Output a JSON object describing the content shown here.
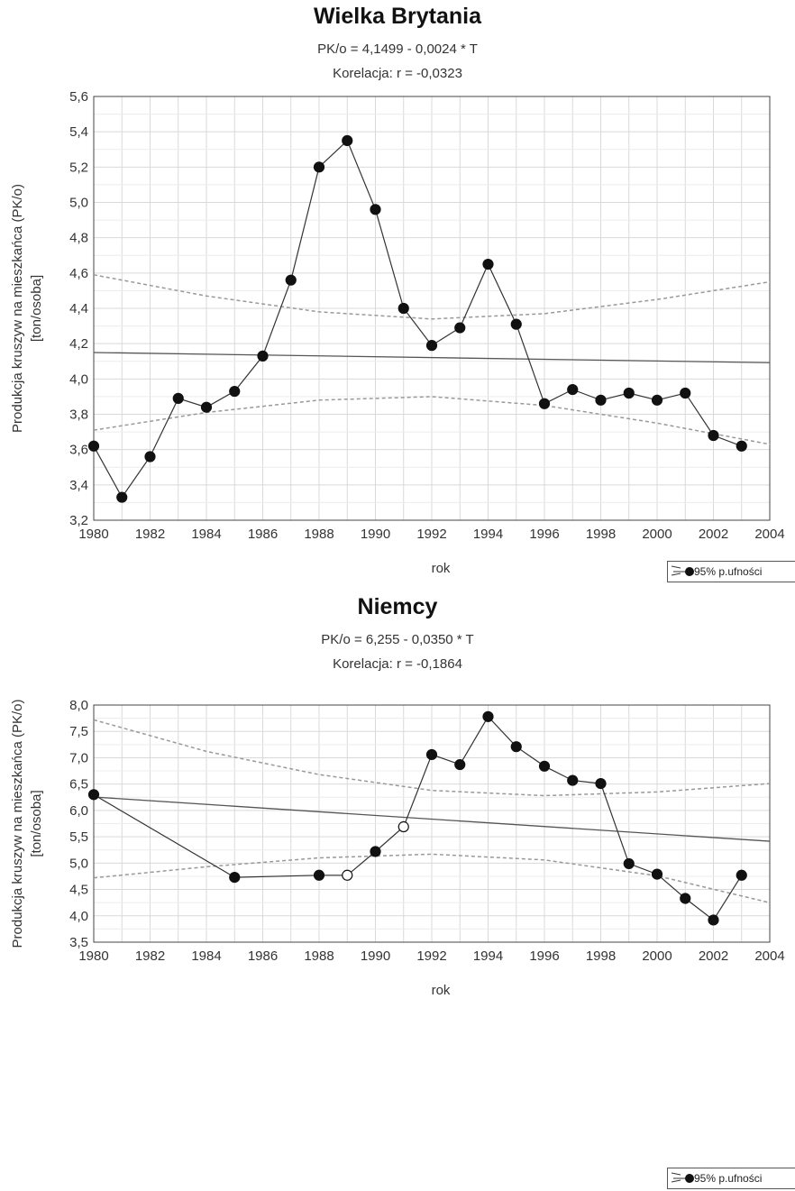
{
  "chart_data": [
    {
      "type": "line",
      "title": "Wielka Brytania",
      "subtitle": "PK/o = 4,1499 - 0,0024  * T",
      "subtitle2": "Korelacja: r =   -0,0323",
      "xlabel": "rok",
      "ylabel": "Produkcja kruszyw na mieszkańca (PK/o)",
      "ylabel2": "[ton/osoba]",
      "xlim": [
        1980,
        2004
      ],
      "ylim": [
        3.2,
        5.6
      ],
      "xticks": [
        "1980",
        "1982",
        "1984",
        "1986",
        "1988",
        "1990",
        "1992",
        "1994",
        "1996",
        "1998",
        "2000",
        "2002",
        "2004"
      ],
      "yticks": [
        "3,2",
        "3,4",
        "3,6",
        "3,8",
        "4,0",
        "4,2",
        "4,4",
        "4,6",
        "4,8",
        "5,0",
        "5,2",
        "5,4",
        "5,6"
      ],
      "grid": true,
      "legend": "95% p.ufności",
      "legend_position": "bottom-right",
      "series": [
        {
          "x": [
            1980,
            1981,
            1982,
            1983,
            1984,
            1985,
            1986,
            1987,
            1988,
            1989,
            1990,
            1991,
            1992,
            1993,
            1994,
            1995,
            1996,
            1997,
            1998,
            1999,
            2000,
            2001,
            2002,
            2003
          ],
          "y": [
            3.62,
            3.33,
            3.56,
            3.89,
            3.84,
            3.93,
            4.13,
            4.56,
            5.2,
            5.35,
            4.96,
            4.4,
            4.19,
            4.29,
            4.65,
            4.31,
            3.86,
            3.94,
            3.88,
            3.92,
            3.88,
            3.92,
            3.68,
            3.62
          ],
          "hollow": []
        }
      ],
      "regression": {
        "intercept": 4.1499,
        "slope": -0.0024,
        "x0": 1980
      },
      "band_upper": {
        "x": [
          1980,
          1984,
          1988,
          1992,
          1996,
          2000,
          2004
        ],
        "y": [
          4.59,
          4.47,
          4.38,
          4.34,
          4.37,
          4.45,
          4.55
        ]
      },
      "band_lower": {
        "x": [
          1980,
          1984,
          1988,
          1992,
          1996,
          2000,
          2004
        ],
        "y": [
          3.71,
          3.81,
          3.88,
          3.9,
          3.85,
          3.75,
          3.63
        ]
      },
      "colors": {
        "line": "#333333",
        "marker": "#111111",
        "regression": "#555555",
        "band": "#999999",
        "grid": "#d9d9d9"
      }
    },
    {
      "type": "line",
      "title": "Niemcy",
      "subtitle": "PK/o = 6,255 - 0,0350  * T",
      "subtitle2": "Korelacja: r =   -0,1864",
      "xlabel": "rok",
      "ylabel": "Produkcja kruszyw na mieszkańca (PK/o)",
      "ylabel2": "[ton/osoba]",
      "xlim": [
        1980,
        2004
      ],
      "ylim": [
        3.5,
        8.0
      ],
      "xticks": [
        "1980",
        "1982",
        "1984",
        "1986",
        "1988",
        "1990",
        "1992",
        "1994",
        "1996",
        "1998",
        "2000",
        "2002",
        "2004"
      ],
      "yticks": [
        "3,5",
        "4,0",
        "4,5",
        "5,0",
        "5,5",
        "6,0",
        "6,5",
        "7,0",
        "7,5",
        "8,0"
      ],
      "grid": true,
      "legend": "95% p.ufności",
      "legend_position": "bottom-right",
      "series": [
        {
          "x": [
            1980,
            1985,
            1988,
            1989,
            1990,
            1991,
            1992,
            1993,
            1994,
            1995,
            1996,
            1997,
            1998,
            1999,
            2000,
            2001,
            2002,
            2003
          ],
          "y": [
            6.3,
            4.73,
            4.77,
            4.77,
            5.22,
            5.69,
            7.06,
            6.87,
            7.78,
            7.21,
            6.84,
            6.57,
            6.51,
            4.99,
            4.79,
            4.33,
            3.92,
            4.77
          ],
          "hollow": [
            1989,
            1991
          ]
        }
      ],
      "regression": {
        "intercept": 6.255,
        "slope": -0.035,
        "x0": 1980
      },
      "band_upper": {
        "x": [
          1980,
          1984,
          1988,
          1992,
          1996,
          2000,
          2004
        ],
        "y": [
          7.72,
          7.12,
          6.68,
          6.38,
          6.28,
          6.35,
          6.51
        ]
      },
      "band_lower": {
        "x": [
          1980,
          1984,
          1988,
          1992,
          1996,
          2000,
          2004
        ],
        "y": [
          4.72,
          4.93,
          5.1,
          5.17,
          5.06,
          4.76,
          4.25
        ]
      },
      "colors": {
        "line": "#333333",
        "marker": "#111111",
        "regression": "#555555",
        "band": "#999999",
        "grid": "#d9d9d9"
      }
    }
  ]
}
